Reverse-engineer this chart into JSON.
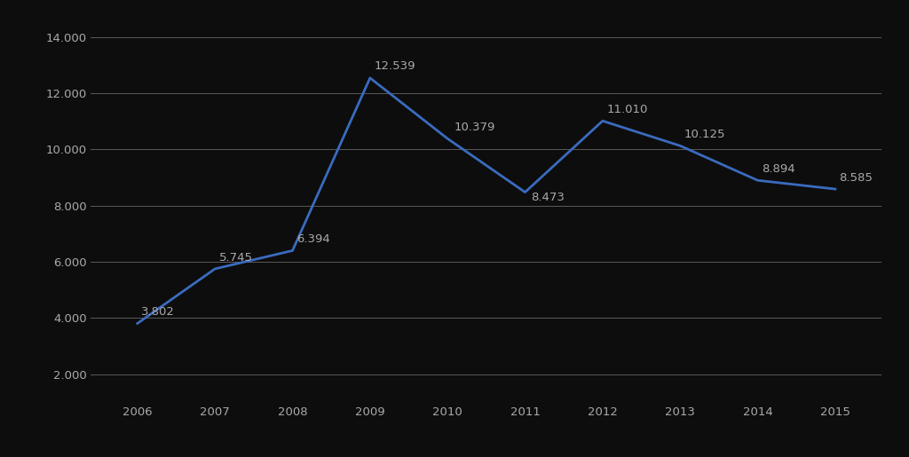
{
  "years": [
    2006,
    2007,
    2008,
    2009,
    2010,
    2011,
    2012,
    2013,
    2014,
    2015
  ],
  "values": [
    3802,
    5745,
    6394,
    12539,
    10379,
    8473,
    11010,
    10125,
    8894,
    8585
  ],
  "labels": [
    "3.802",
    "5.745",
    "6.394",
    "12.539",
    "10.379",
    "8.473",
    "11.010",
    "10.125",
    "8.894",
    "8.585"
  ],
  "line_color": "#3a6bbf",
  "background_color": "#0d0d0d",
  "grid_color": "#666666",
  "text_color": "#aaaaaa",
  "ylim": [
    1000,
    14500
  ],
  "yticks": [
    2000,
    4000,
    6000,
    8000,
    10000,
    12000,
    14000
  ],
  "ytick_labels": [
    "2.000",
    "4.000",
    "6.000",
    "8.000",
    "10.000",
    "12.000",
    "14.000"
  ],
  "line_width": 2.0,
  "label_fontsize": 9.5,
  "tick_fontsize": 9.5,
  "label_offsets_x": [
    0.05,
    0.05,
    0.05,
    0.05,
    0.08,
    0.08,
    0.05,
    0.05,
    0.05,
    0.05
  ],
  "label_offsets_y": [
    200,
    200,
    200,
    220,
    200,
    -380,
    200,
    200,
    200,
    200
  ]
}
